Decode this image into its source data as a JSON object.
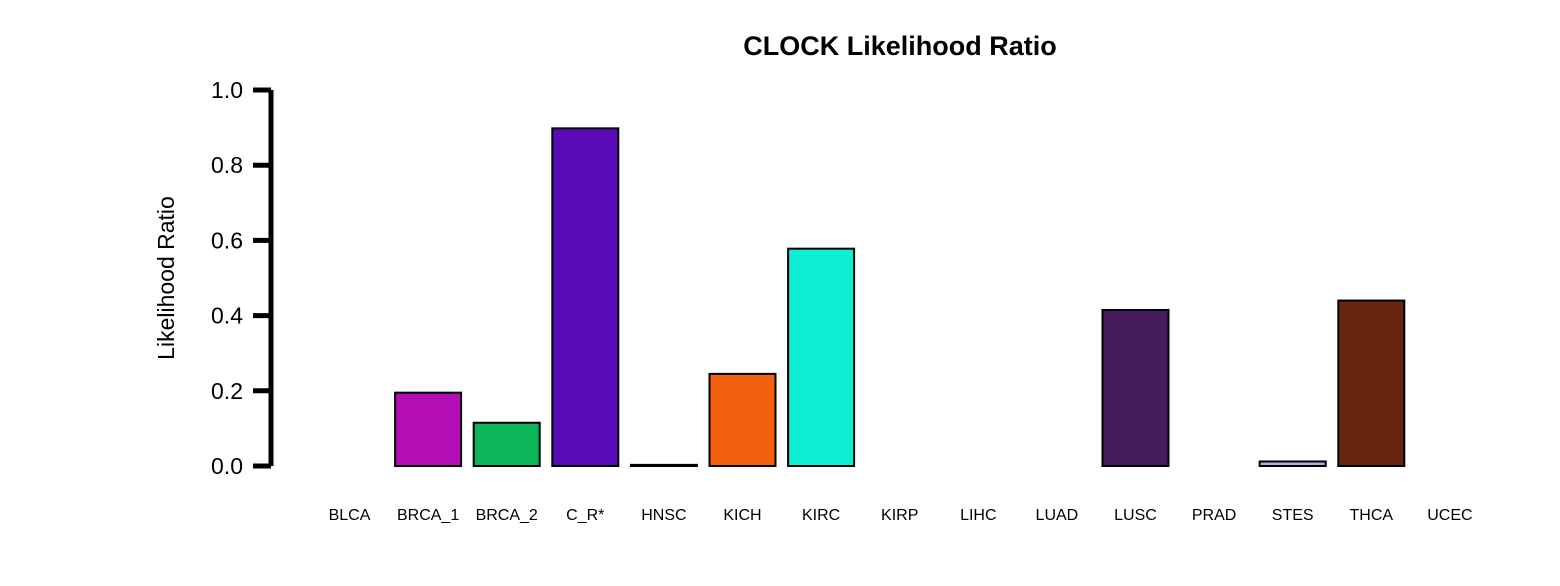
{
  "chart_data": {
    "type": "bar",
    "title": "CLOCK Likelihood Ratio",
    "xlabel": "",
    "ylabel": "Likelihood Ratio",
    "ylim": [
      0,
      1.0
    ],
    "yticks": [
      "0.0",
      "0.2",
      "0.4",
      "0.6",
      "0.8",
      "1.0"
    ],
    "grid": false,
    "legend": "none",
    "categories": [
      "BLCA",
      "BRCA_1",
      "BRCA_2",
      "C_R*",
      "HNSC",
      "KICH",
      "KIRC",
      "KIRP",
      "LIHC",
      "LUAD",
      "LUSC",
      "PRAD",
      "STES",
      "THCA",
      "UCEC"
    ],
    "values": [
      0.0,
      0.195,
      0.115,
      0.898,
      0.003,
      0.245,
      0.578,
      0.0,
      0.0,
      0.0,
      0.415,
      0.0,
      0.012,
      0.44,
      0.0
    ],
    "colors": [
      "#000000",
      "#b40db4",
      "#0cb558",
      "#5c0bb8",
      "#1a1a1a",
      "#f2600f",
      "#0cefd2",
      "#000000",
      "#000000",
      "#000000",
      "#471c5e",
      "#000000",
      "#a7b4e0",
      "#66260f",
      "#000000"
    ]
  }
}
